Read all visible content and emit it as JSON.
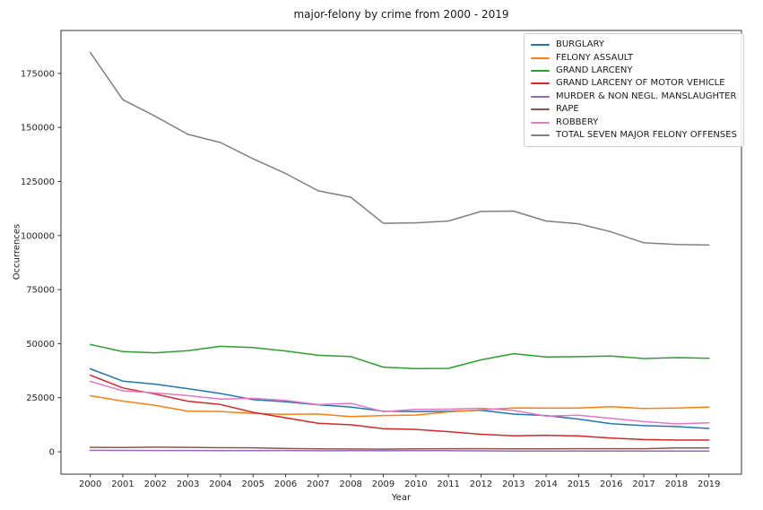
{
  "figure": {
    "title": "major-felony by crime from 2000 - 2019",
    "xlabel": "Year",
    "ylabel": "Occurrences"
  },
  "chart_data": {
    "type": "line",
    "title": "major-felony by crime from 2000 - 2019",
    "xlabel": "Year",
    "ylabel": "Occurrences",
    "grid": false,
    "legend_position": "upper right",
    "x": [
      2000,
      2001,
      2002,
      2003,
      2004,
      2005,
      2006,
      2007,
      2008,
      2009,
      2010,
      2011,
      2012,
      2013,
      2014,
      2015,
      2016,
      2017,
      2018,
      2019
    ],
    "xlim": [
      1999.1,
      2020.0
    ],
    "ylim": [
      -10343,
      194852
    ],
    "yticks": [
      0,
      25000,
      50000,
      75000,
      100000,
      125000,
      150000,
      175000
    ],
    "series": [
      {
        "name": "BURGLARY",
        "color": "#1f77b4",
        "values": [
          38352,
          32694,
          31275,
          29207,
          26976,
          24117,
          23143,
          21762,
          20725,
          18780,
          18600,
          18720,
          19168,
          17429,
          16765,
          15125,
          12990,
          12083,
          11687,
          10783
        ]
      },
      {
        "name": "FELONY ASSAULT",
        "color": "#ff7f0e",
        "values": [
          25924,
          23453,
          21438,
          18764,
          18622,
          17750,
          17309,
          17493,
          16284,
          16773,
          16956,
          18482,
          19381,
          20297,
          20207,
          20270,
          20847,
          20052,
          20208,
          20698
        ]
      },
      {
        "name": "GRAND LARCENY",
        "color": "#2ca02c",
        "values": [
          49631,
          46329,
          45771,
          46754,
          48753,
          48243,
          46623,
          44624,
          44046,
          39165,
          38501,
          38573,
          42497,
          45368,
          43862,
          44005,
          44279,
          43150,
          43558,
          43250
        ]
      },
      {
        "name": "GRAND LARCENY OF MOTOR VEHICLE",
        "color": "#d62728",
        "values": [
          35442,
          29531,
          26679,
          23413,
          21848,
          18247,
          15745,
          13174,
          12482,
          10670,
          10329,
          9314,
          8093,
          7400,
          7664,
          7332,
          6327,
          5676,
          5428,
          5430
        ]
      },
      {
        "name": "MURDER & NON NEGL. MANSLAUGHTER",
        "color": "#9467bd",
        "values": [
          673,
          649,
          587,
          597,
          570,
          539,
          596,
          496,
          523,
          471,
          536,
          515,
          419,
          335,
          333,
          352,
          335,
          292,
          295,
          319
        ]
      },
      {
        "name": "RAPE",
        "color": "#8c564b",
        "values": [
          2068,
          1981,
          2144,
          2070,
          1905,
          1858,
          1525,
          1351,
          1299,
          1205,
          1373,
          1420,
          1445,
          1378,
          1352,
          1438,
          1438,
          1449,
          1794,
          1755
        ]
      },
      {
        "name": "ROBBERY",
        "color": "#e377c2",
        "values": [
          32562,
          28202,
          27229,
          25989,
          24373,
          24722,
          23739,
          21809,
          22401,
          18601,
          19608,
          19717,
          20144,
          19128,
          16539,
          16931,
          15500,
          13956,
          12913,
          13371
        ]
      },
      {
        "name": "TOTAL SEVEN MAJOR FELONY OFFENSES",
        "color": "#7f7f7f",
        "values": [
          184652,
          162839,
          155123,
          146794,
          143047,
          135476,
          128680,
          120709,
          117760,
          105665,
          105903,
          106741,
          111147,
          111335,
          106722,
          105453,
          101716,
          96658,
          95883,
          95606
        ]
      }
    ]
  }
}
